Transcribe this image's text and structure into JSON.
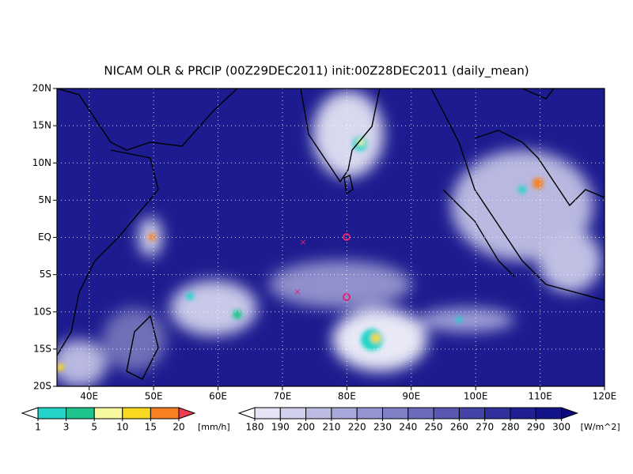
{
  "title": "NICAM OLR & PRCIP (00Z29DEC2011) init:00Z28DEC2011 (daily_mean)",
  "map": {
    "lonlim": [
      35,
      120
    ],
    "latlim": [
      -20,
      20
    ],
    "lat_ticks": [
      {
        "value": 20,
        "label": "20N"
      },
      {
        "value": 15,
        "label": "15N"
      },
      {
        "value": 10,
        "label": "10N"
      },
      {
        "value": 5,
        "label": "5N"
      },
      {
        "value": 0,
        "label": "EQ"
      },
      {
        "value": -5,
        "label": "5S"
      },
      {
        "value": -10,
        "label": "10S"
      },
      {
        "value": -15,
        "label": "15S"
      },
      {
        "value": -20,
        "label": "20S"
      }
    ],
    "lon_ticks": [
      {
        "value": 40,
        "label": "40E"
      },
      {
        "value": 50,
        "label": "50E"
      },
      {
        "value": 60,
        "label": "60E"
      },
      {
        "value": 70,
        "label": "70E"
      },
      {
        "value": 80,
        "label": "80E"
      },
      {
        "value": 90,
        "label": "90E"
      },
      {
        "value": 100,
        "label": "100E"
      },
      {
        "value": 110,
        "label": "110E"
      },
      {
        "value": 120,
        "label": "120E"
      }
    ]
  },
  "precip_colorbar": {
    "ticks": [
      1,
      3,
      5,
      10,
      15,
      20
    ],
    "unit": "[mm/h]",
    "colors": [
      "#ffffff",
      "#22d4c8",
      "#1ec48c",
      "#f8f8a0",
      "#f8d820",
      "#f88020",
      "#f03c50"
    ]
  },
  "olr_colorbar": {
    "ticks": [
      180,
      190,
      200,
      210,
      220,
      230,
      240,
      250,
      260,
      270,
      280,
      290,
      300
    ],
    "unit": "[W/m^2]",
    "colors": [
      "#ffffff",
      "#e4e4f4",
      "#d0d0ec",
      "#bcbce2",
      "#a8a8da",
      "#9494d0",
      "#8080c6",
      "#6c6cbc",
      "#5858b2",
      "#4444a8",
      "#30309e",
      "#202094",
      "#14148a",
      "#0a0a80"
    ]
  }
}
